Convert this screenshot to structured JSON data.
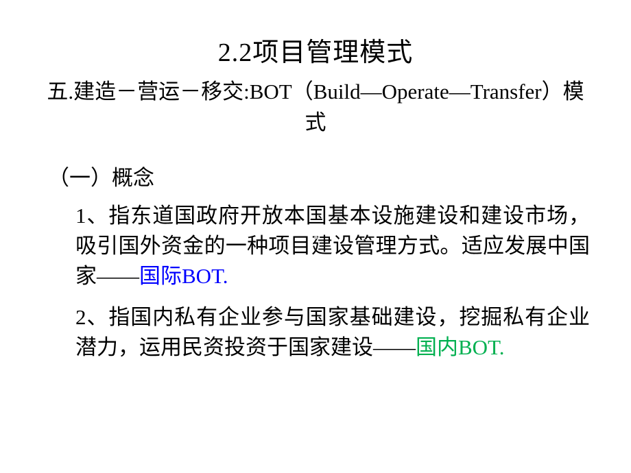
{
  "slide": {
    "title": "2.2项目管理模式",
    "subtitle": "五.建造－营运－移交:BOT（Build—Operate—Transfer）模式",
    "section_header": "（一）概念",
    "paragraph1": {
      "text_before": "1、指东道国政府开放本国基本设施建设和建设市场，吸引国外资金的一种项目建设管理方式。适应发展中国家――",
      "highlight": "国际BOT.",
      "highlight_color": "#0000ff"
    },
    "paragraph2": {
      "text_before": "2、指国内私有企业参与国家基础建设，挖掘私有企业潜力，运用民资投资于国家建设――",
      "highlight": "国内BOT.",
      "highlight_color": "#00b050"
    }
  },
  "styling": {
    "background_color": "#ffffff",
    "title_fontsize": 38,
    "subtitle_fontsize": 31,
    "body_fontsize": 31,
    "text_color": "#000000",
    "font_family": "SimSun"
  }
}
